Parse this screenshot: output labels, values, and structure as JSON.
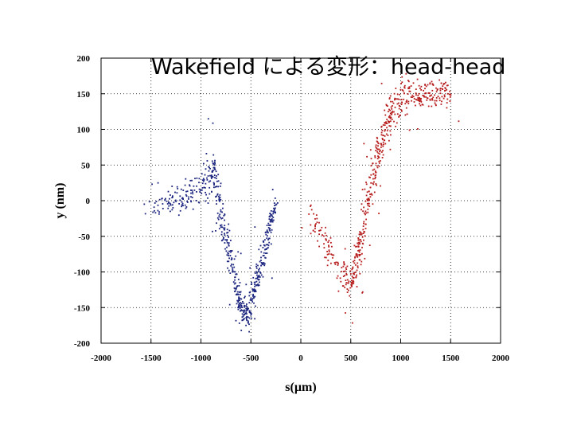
{
  "slide": {
    "title": "Wakefield による変形：head-head"
  },
  "chart_data": {
    "type": "scatter",
    "title": "Wakefield による変形：head-head",
    "xlabel": "s(µm)",
    "ylabel": "y (nm)",
    "xlim": [
      -2000,
      2000
    ],
    "ylim": [
      -200,
      200
    ],
    "x_ticks": [
      -2000,
      -1500,
      -1000,
      -500,
      0,
      500,
      1000,
      1500,
      2000
    ],
    "y_ticks": [
      -200,
      -150,
      -100,
      -50,
      0,
      50,
      100,
      150,
      200
    ],
    "x_tick_labels": [
      "-2000",
      "-1500",
      "-1000",
      "-500",
      "0",
      "500",
      "1000",
      "1500",
      "2000"
    ],
    "y_tick_labels": [
      "-200",
      "-150",
      "-100",
      "-50",
      "0",
      "50",
      "100",
      "150",
      "200"
    ],
    "grid": "dotted",
    "legend": "none",
    "series": [
      {
        "color": "#1a237e",
        "profile": [
          [
            -1500,
            -10,
            15
          ],
          [
            -1300,
            0,
            18
          ],
          [
            -1150,
            5,
            22
          ],
          [
            -1000,
            15,
            30
          ],
          [
            -900,
            40,
            30
          ],
          [
            -850,
            30,
            35
          ],
          [
            -800,
            -20,
            30
          ],
          [
            -750,
            -55,
            28
          ],
          [
            -700,
            -85,
            25
          ],
          [
            -650,
            -120,
            25
          ],
          [
            -600,
            -150,
            22
          ],
          [
            -550,
            -160,
            22
          ],
          [
            -500,
            -150,
            25
          ],
          [
            -450,
            -120,
            25
          ],
          [
            -400,
            -90,
            22
          ],
          [
            -350,
            -60,
            22
          ],
          [
            -300,
            -30,
            20
          ],
          [
            -250,
            -5,
            18
          ]
        ]
      },
      {
        "color": "#b71c1c",
        "profile": [
          [
            100,
            -20,
            25
          ],
          [
            250,
            -60,
            25
          ],
          [
            400,
            -100,
            25
          ],
          [
            500,
            -115,
            25
          ],
          [
            550,
            -90,
            30
          ],
          [
            600,
            -60,
            35
          ],
          [
            650,
            -20,
            35
          ],
          [
            700,
            20,
            30
          ],
          [
            750,
            50,
            30
          ],
          [
            800,
            80,
            30
          ],
          [
            850,
            105,
            25
          ],
          [
            900,
            125,
            25
          ],
          [
            1000,
            145,
            25
          ],
          [
            1100,
            150,
            25
          ],
          [
            1200,
            148,
            25
          ],
          [
            1300,
            150,
            22
          ],
          [
            1400,
            152,
            20
          ],
          [
            1500,
            150,
            18
          ]
        ]
      }
    ]
  }
}
